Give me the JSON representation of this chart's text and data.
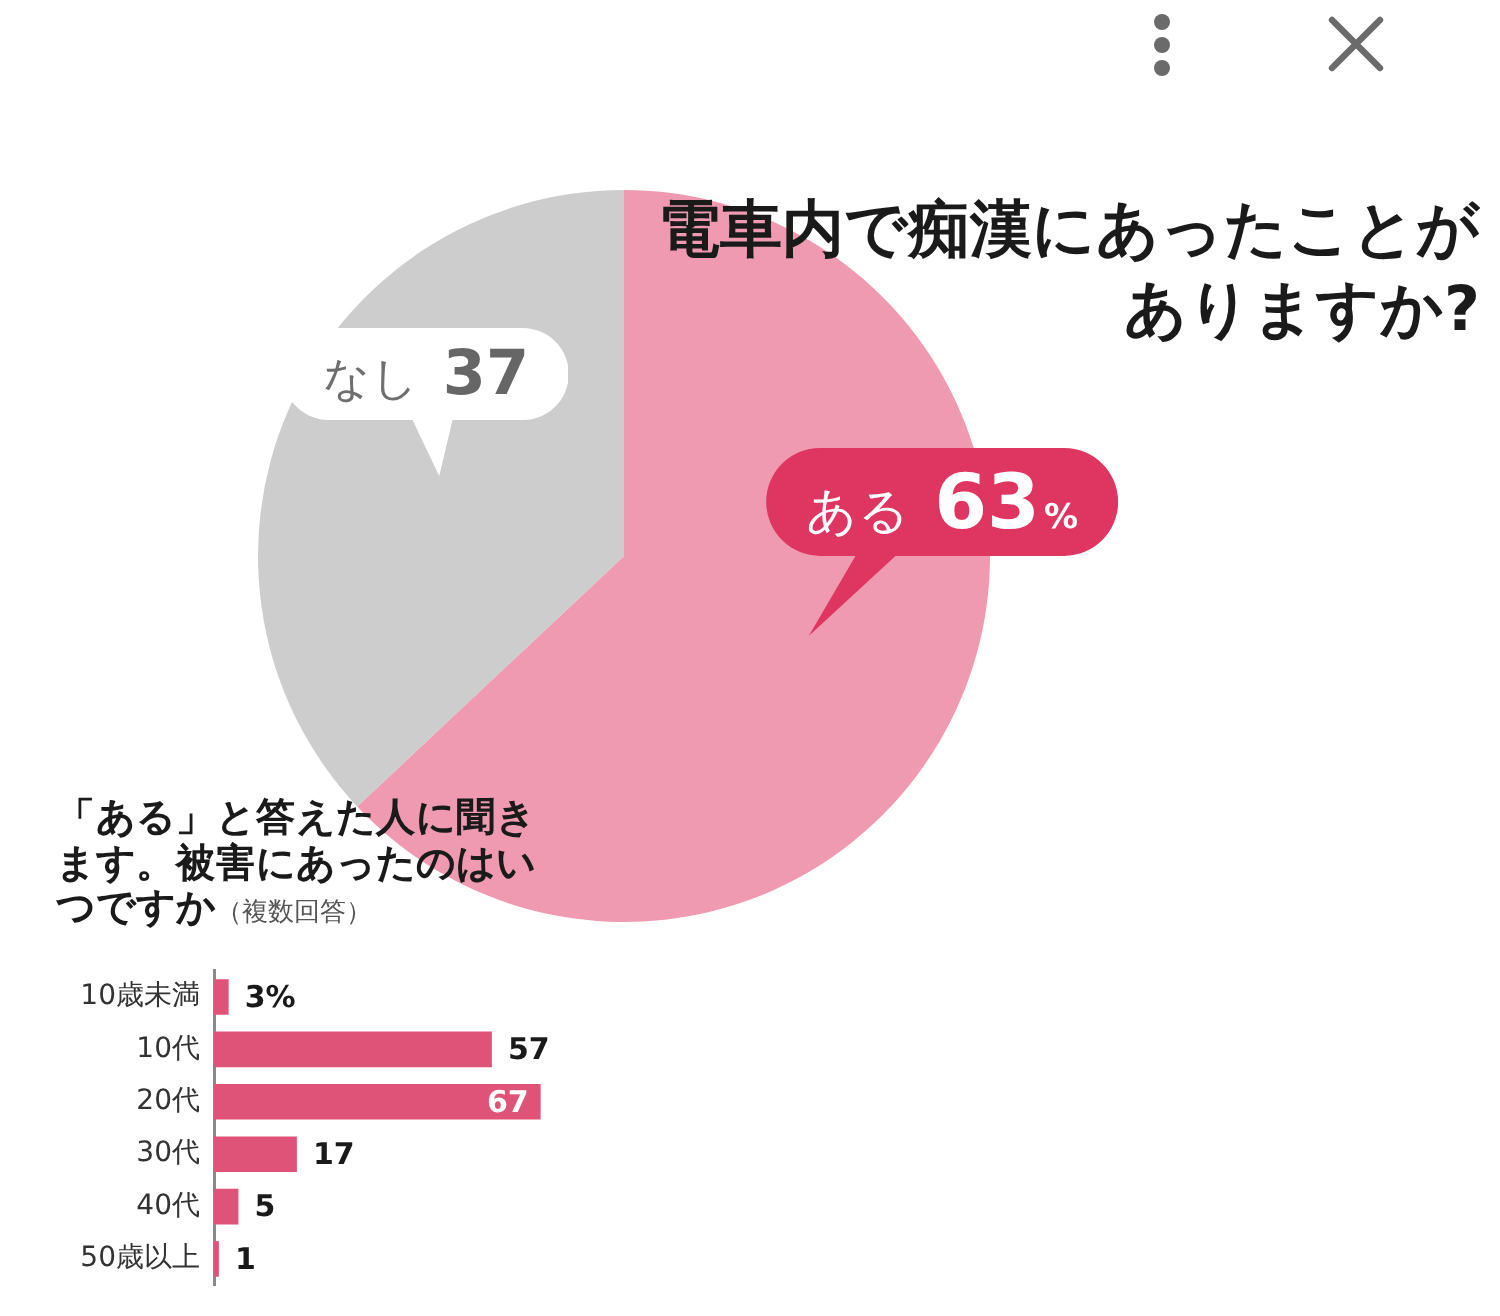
{
  "chart_data": [
    {
      "type": "pie",
      "title": "電車内で痴漢にあったことがありますか?",
      "categories": [
        "ある",
        "なし"
      ],
      "values": [
        63,
        37
      ],
      "colors": [
        "#ef9ab0",
        "#cdcdcd"
      ],
      "value_labels": [
        "63%",
        "37"
      ]
    },
    {
      "type": "bar",
      "orientation": "horizontal",
      "title": "「ある」と答えた人に聞きます。被害にあったのはいつですか",
      "subtitle": "（複数回答）",
      "categories": [
        "10歳未満",
        "10代",
        "20代",
        "30代",
        "40代",
        "50歳以上"
      ],
      "values": [
        3,
        57,
        67,
        17,
        5,
        1
      ],
      "color": "#e05378",
      "value_labels": [
        "3%",
        "57",
        "67",
        "17",
        "5",
        "1"
      ],
      "tick_labels": "y"
    }
  ]
}
